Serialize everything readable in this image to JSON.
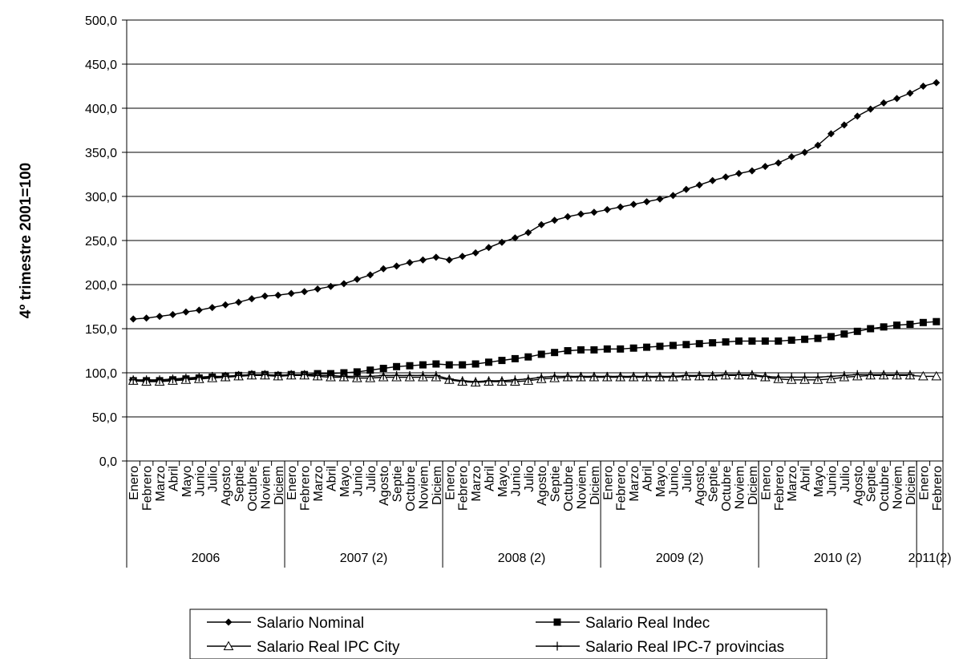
{
  "chart_data": {
    "type": "line",
    "ylabel": "4º trimestre 2001=100",
    "xlabel": "",
    "ylim": [
      0,
      500
    ],
    "y_ticks": [
      "0,0",
      "50,0",
      "100,0",
      "150,0",
      "200,0",
      "250,0",
      "300,0",
      "350,0",
      "400,0",
      "450,0",
      "500,0"
    ],
    "grid": true,
    "legend_position": "bottom",
    "categories": [
      "Enero",
      "Febrero",
      "Marzo",
      "Abril",
      "Mayo",
      "Junio",
      "Julio",
      "Agosto",
      "Septie",
      "Octubre",
      "Noviem",
      "Diciem",
      "Enero",
      "Febrero",
      "Marzo",
      "Abril",
      "Mayo",
      "Junio",
      "Julio",
      "Agosto",
      "Septie",
      "Octubre",
      "Noviem",
      "Diciem",
      "Enero",
      "Febrero",
      "Marzo",
      "Abril",
      "Mayo",
      "Junio",
      "Julio",
      "Agosto",
      "Septie",
      "Octubre",
      "Noviem",
      "Diciem",
      "Enero",
      "Febrero",
      "Marzo",
      "Abril",
      "Mayo",
      "Junio",
      "Julio",
      "Agosto",
      "Septie",
      "Octubre",
      "Noviem",
      "Diciem",
      "Enero",
      "Febrero",
      "Marzo",
      "Abril",
      "Mayo",
      "Junio",
      "Julio",
      "Agosto",
      "Septie",
      "Octubre",
      "Noviem",
      "Diciem",
      "Enero",
      "Febrero"
    ],
    "year_groups": [
      {
        "label": "2006",
        "count": 12
      },
      {
        "label": "2007 (2)",
        "count": 12
      },
      {
        "label": "2008 (2)",
        "count": 12
      },
      {
        "label": "2009 (2)",
        "count": 12
      },
      {
        "label": "2010 (2)",
        "count": 12
      },
      {
        "label": "2011(2)",
        "count": 2
      }
    ],
    "series": [
      {
        "name": "Salario Nominal",
        "marker": "diamond",
        "color": "#000000",
        "values": [
          161,
          162,
          164,
          166,
          169,
          171,
          174,
          177,
          180,
          184,
          187,
          188,
          190,
          192,
          195,
          198,
          201,
          206,
          211,
          218,
          221,
          225,
          228,
          231,
          228,
          232,
          236,
          242,
          248,
          253,
          259,
          268,
          273,
          277,
          280,
          282,
          285,
          288,
          291,
          294,
          297,
          301,
          308,
          313,
          318,
          322,
          326,
          329,
          334,
          338,
          345,
          350,
          358,
          371,
          381,
          391,
          399,
          406,
          411,
          417,
          425,
          429
        ]
      },
      {
        "name": "Salario Real Indec",
        "marker": "square",
        "color": "#000000",
        "values": [
          91,
          91,
          91,
          92,
          93,
          94,
          95,
          96,
          97,
          98,
          98,
          97,
          98,
          98,
          99,
          99,
          100,
          101,
          103,
          105,
          107,
          108,
          109,
          110,
          109,
          109,
          110,
          112,
          114,
          116,
          118,
          121,
          123,
          125,
          126,
          126,
          127,
          127,
          128,
          129,
          130,
          131,
          132,
          133,
          134,
          135,
          136,
          136,
          136,
          136,
          137,
          138,
          139,
          141,
          144,
          147,
          150,
          152,
          154,
          155,
          157,
          158
        ]
      },
      {
        "name": "Salario Real IPC City",
        "marker": "triangle",
        "color": "#000000",
        "values": [
          91,
          90,
          90,
          91,
          92,
          93,
          94,
          95,
          96,
          97,
          97,
          96,
          97,
          97,
          96,
          95,
          95,
          94,
          94,
          95,
          95,
          95,
          95,
          95,
          92,
          90,
          89,
          90,
          90,
          90,
          91,
          93,
          94,
          95,
          95,
          95,
          95,
          95,
          95,
          95,
          95,
          95,
          96,
          96,
          96,
          97,
          97,
          97,
          95,
          93,
          92,
          92,
          92,
          93,
          95,
          96,
          97,
          97,
          97,
          97,
          96,
          96
        ]
      },
      {
        "name": "Salario Real IPC-7 provincias",
        "marker": "plus",
        "color": "#000000",
        "values": [
          92,
          92,
          92,
          93,
          94,
          95,
          96,
          96,
          97,
          98,
          98,
          97,
          98,
          98,
          97,
          97,
          96,
          96,
          96,
          97,
          97,
          97,
          97,
          97,
          93,
          91,
          90,
          91,
          91,
          92,
          93,
          95,
          96,
          96,
          96,
          96,
          96,
          96,
          96,
          96,
          96,
          96,
          97,
          97,
          97,
          98,
          98,
          98,
          96,
          95,
          95,
          95,
          95,
          96,
          97,
          98,
          98,
          98,
          98,
          98,
          null,
          null
        ]
      }
    ]
  }
}
